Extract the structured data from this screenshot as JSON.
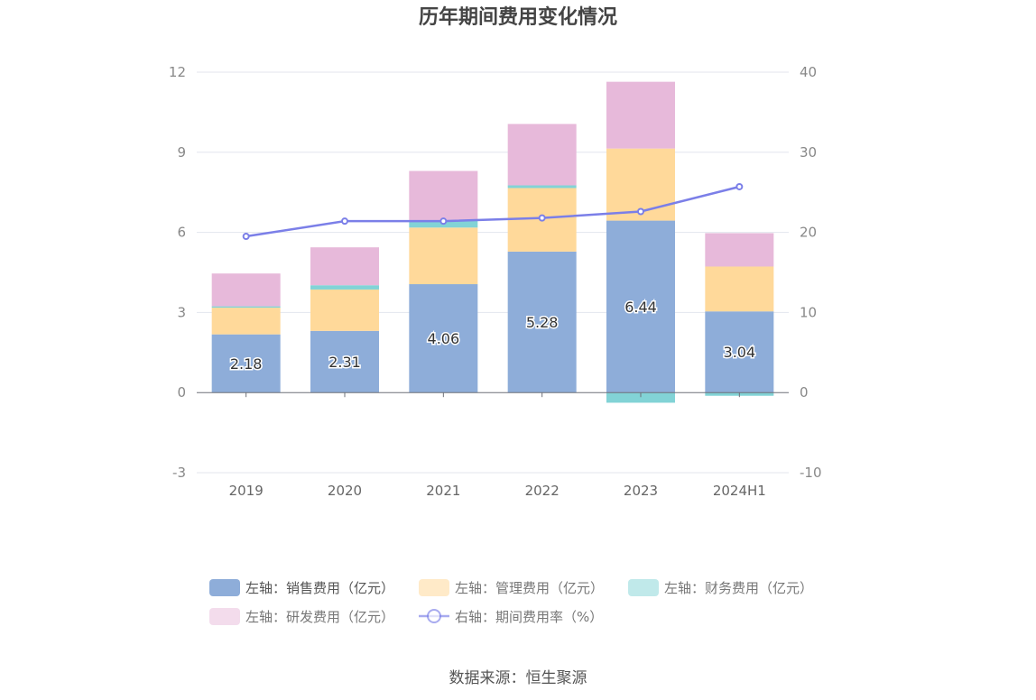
{
  "chart_data": {
    "type": "bar",
    "stacked": true,
    "title": "历年期间费用变化情况",
    "categories": [
      "2019",
      "2020",
      "2021",
      "2022",
      "2023",
      "2024H1"
    ],
    "series": [
      {
        "name": "左轴：销售费用（亿元）",
        "axis": "left",
        "type": "bar",
        "color": "#8eadd9",
        "values": [
          2.18,
          2.31,
          4.06,
          5.28,
          6.44,
          3.04
        ],
        "labels": [
          "2.18",
          "2.31",
          "4.06",
          "5.28",
          "6.44",
          "3.04"
        ]
      },
      {
        "name": "左轴：管理费用（亿元）",
        "axis": "left",
        "type": "bar",
        "color": "#ffd99a",
        "values": [
          1.0,
          1.55,
          2.12,
          2.38,
          2.7,
          1.68
        ]
      },
      {
        "name": "左轴：财务费用（亿元）",
        "axis": "left",
        "type": "bar",
        "color": "#82d3d6",
        "values": [
          0.05,
          0.16,
          0.25,
          0.1,
          -0.38,
          -0.12
        ]
      },
      {
        "name": "左轴：研发费用（亿元）",
        "axis": "left",
        "type": "bar",
        "color": "#e7b9da",
        "values": [
          1.23,
          1.42,
          1.87,
          2.3,
          2.5,
          1.25
        ]
      },
      {
        "name": "右轴：期间费用率（%）",
        "axis": "right",
        "type": "line",
        "color": "#7b7fe8",
        "values": [
          19.5,
          21.4,
          21.4,
          21.8,
          22.6,
          25.7
        ]
      }
    ],
    "y_left": {
      "min": -3,
      "max": 12,
      "ticks": [
        -3,
        0,
        3,
        6,
        9,
        12
      ]
    },
    "y_right": {
      "min": -10,
      "max": 40,
      "ticks": [
        -10,
        0,
        10,
        20,
        30,
        40
      ]
    },
    "legend_position": "bottom",
    "grid": true,
    "source": "数据来源：恒生聚源"
  }
}
